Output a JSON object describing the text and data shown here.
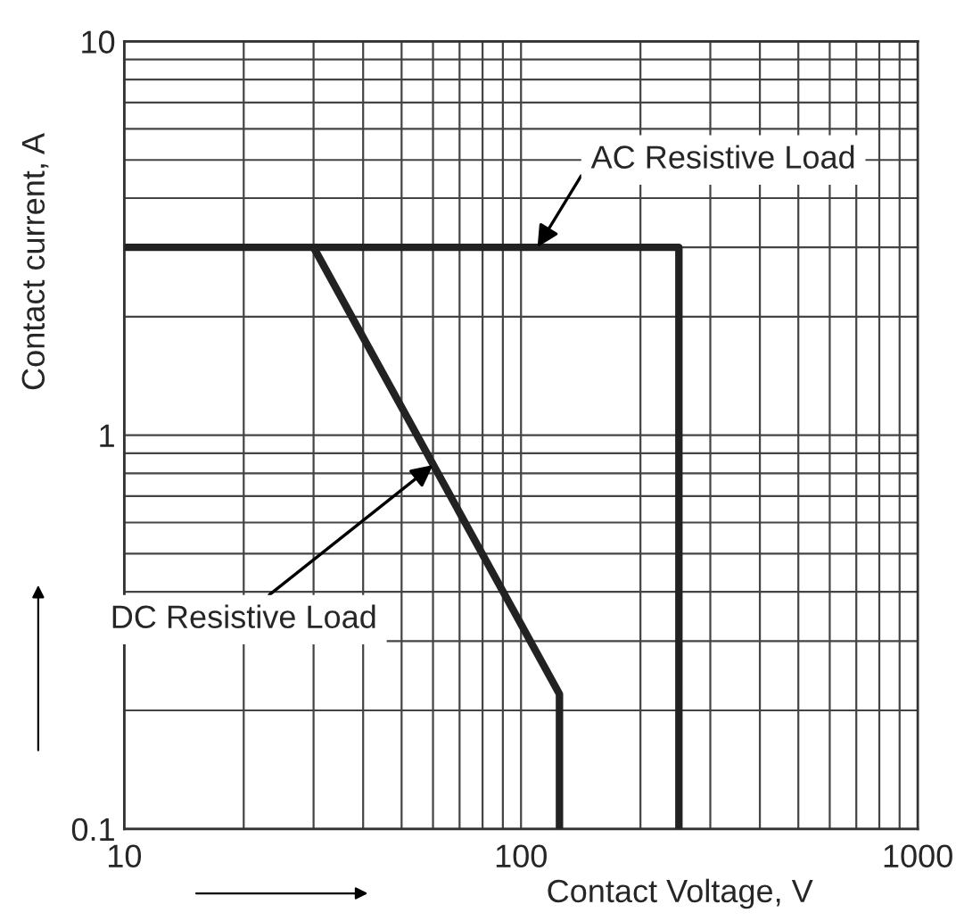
{
  "chart_data": {
    "type": "line",
    "xlabel": "Contact Voltage, V",
    "ylabel": "Contact current, A",
    "log": "xy",
    "grid": true,
    "xlim": [
      10,
      1000
    ],
    "xticks": [
      10,
      100,
      1000
    ],
    "ylim": [
      0.1,
      10
    ],
    "yticks": [
      0.1,
      1,
      10
    ],
    "series": [
      {
        "color": "#222222",
        "x": [
          10,
          250,
          250
        ],
        "values": [
          3,
          3,
          0.1
        ]
      },
      {
        "color": "#222222",
        "x": [
          30,
          125,
          125
        ],
        "values": [
          3,
          0.22,
          0.1
        ]
      }
    ],
    "annotations": [
      {
        "text": "AC Resistive Load",
        "x": 110,
        "y": 3
      },
      {
        "text": "DC Resistive Load",
        "x": 60,
        "y": 0.84
      }
    ]
  }
}
